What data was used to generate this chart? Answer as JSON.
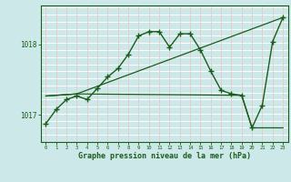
{
  "title": "Graphe pression niveau de la mer (hPa)",
  "bg_color": "#cce8e8",
  "grid_color_h": "#ffffff",
  "grid_color_v": "#e8c8c8",
  "line_color": "#1a5c1a",
  "xlim": [
    -0.5,
    23.5
  ],
  "ylim": [
    1016.62,
    1018.55
  ],
  "yticks": [
    1017,
    1018
  ],
  "xticks": [
    0,
    1,
    2,
    3,
    4,
    5,
    6,
    7,
    8,
    9,
    10,
    11,
    12,
    13,
    14,
    15,
    16,
    17,
    18,
    19,
    20,
    21,
    22,
    23
  ],
  "line1_x": [
    0,
    1,
    2,
    3,
    4,
    5,
    6,
    7,
    8,
    9,
    10,
    11,
    12,
    13,
    14,
    15,
    16,
    17,
    18,
    19,
    20,
    21,
    22,
    23
  ],
  "line1_y": [
    1016.88,
    1017.08,
    1017.22,
    1017.27,
    1017.22,
    1017.38,
    1017.54,
    1017.66,
    1017.86,
    1018.12,
    1018.18,
    1018.18,
    1017.96,
    1018.15,
    1018.15,
    1017.92,
    1017.62,
    1017.35,
    1017.3,
    1017.28,
    1016.82,
    1017.14,
    1018.04,
    1018.38
  ],
  "line2_x": [
    0,
    3,
    23
  ],
  "line2_y": [
    1017.27,
    1017.3,
    1018.38
  ],
  "line3_x": [
    0,
    3,
    19,
    20,
    23
  ],
  "line3_y": [
    1017.27,
    1017.3,
    1017.28,
    1016.82,
    1016.82
  ]
}
